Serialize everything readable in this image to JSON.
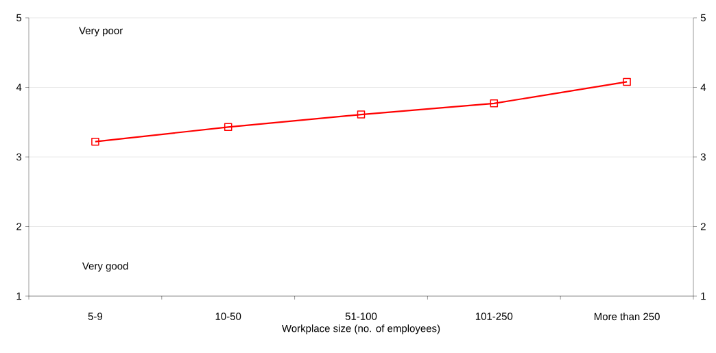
{
  "chart_data": {
    "type": "line",
    "xlabel": "Workplace size (no. of employees)",
    "categories": [
      "5-9",
      "10-50",
      "51-100",
      "101-250",
      "More than 250"
    ],
    "series": [
      {
        "color": "#ff0000",
        "values": [
          3.22,
          3.43,
          3.61,
          3.77,
          4.08
        ]
      }
    ],
    "ylim": [
      1,
      5
    ],
    "yticks": [
      1,
      2,
      3,
      4,
      5
    ],
    "y2lim": [
      1,
      5
    ],
    "y2ticks": [
      1,
      2,
      3,
      4,
      5
    ],
    "annotations": [
      "Very poor",
      "Very good"
    ],
    "grid": "y",
    "marker": "square",
    "line_style": "solid"
  }
}
